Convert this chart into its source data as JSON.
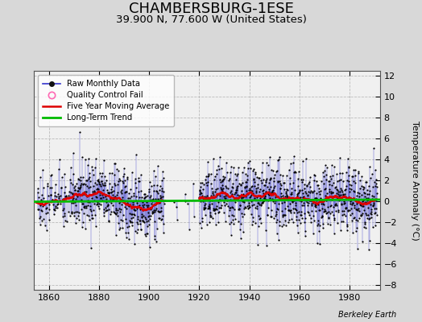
{
  "title": "CHAMBERSBURG-1ESE",
  "subtitle": "39.900 N, 77.600 W (United States)",
  "ylabel": "Temperature Anomaly (°C)",
  "credit": "Berkeley Earth",
  "ylim": [
    -8.5,
    12.5
  ],
  "yticks": [
    -8,
    -6,
    -4,
    -2,
    0,
    2,
    4,
    6,
    8,
    10,
    12
  ],
  "xlim": [
    1854,
    1992
  ],
  "xticks": [
    1860,
    1880,
    1900,
    1920,
    1940,
    1960,
    1980
  ],
  "year_start": 1855,
  "year_end": 1990,
  "seed": 42,
  "fig_color": "#d8d8d8",
  "plot_bg_color": "#f0f0f0",
  "line_color": "#3333cc",
  "dot_color": "#000000",
  "ma_color": "#dd0000",
  "trend_color": "#00bb00",
  "legend_bg": "#ffffff",
  "title_fontsize": 13,
  "subtitle_fontsize": 9.5,
  "tick_fontsize": 8,
  "ylabel_fontsize": 8
}
